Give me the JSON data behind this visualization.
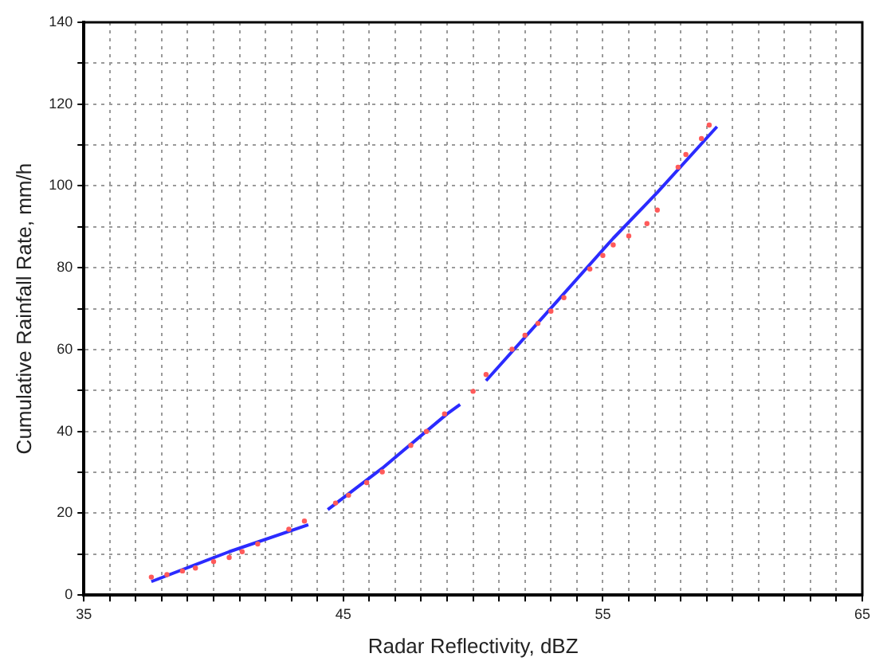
{
  "chart_data": {
    "type": "scatter",
    "xlabel": "Radar Reflectivity, dBZ",
    "ylabel": "Cumulative Rainfall Rate, mm/h",
    "xlim": [
      35,
      65
    ],
    "ylim": [
      0,
      140
    ],
    "xticks": [
      35,
      {
        "value": 36,
        "label": null
      },
      {
        "value": 37,
        "label": null
      },
      {
        "value": 38,
        "label": null
      },
      {
        "value": 39,
        "label": null
      },
      {
        "value": 40,
        "label": null
      },
      {
        "value": 41,
        "label": null
      },
      {
        "value": 42,
        "label": null
      },
      {
        "value": 43,
        "label": null
      },
      {
        "value": 44,
        "label": null
      },
      45,
      {
        "value": 46,
        "label": null
      },
      {
        "value": 47,
        "label": null
      },
      {
        "value": 48,
        "label": null
      },
      {
        "value": 49,
        "label": null
      },
      {
        "value": 50,
        "label": null
      },
      {
        "value": 51,
        "label": null
      },
      {
        "value": 52,
        "label": null
      },
      {
        "value": 53,
        "label": null
      },
      {
        "value": 54,
        "label": null
      },
      55,
      {
        "value": 56,
        "label": null
      },
      {
        "value": 57,
        "label": null
      },
      {
        "value": 58,
        "label": null
      },
      {
        "value": 59,
        "label": null
      },
      {
        "value": 60,
        "label": null
      },
      {
        "value": 61,
        "label": null
      },
      {
        "value": 62,
        "label": null
      },
      {
        "value": 63,
        "label": null
      },
      {
        "value": 64,
        "label": null
      },
      65
    ],
    "yticks": [
      0,
      {
        "value": 10,
        "label": null
      },
      20,
      {
        "value": 30,
        "label": null
      },
      40,
      {
        "value": 50,
        "label": null
      },
      60,
      {
        "value": 70,
        "label": null
      },
      80,
      {
        "value": 90,
        "label": null
      },
      100,
      {
        "value": 110,
        "label": null
      },
      120,
      {
        "value": 130,
        "label": null
      },
      140
    ],
    "grid": true,
    "legend": false,
    "series": [
      {
        "type": "scatter",
        "marker": "circle",
        "color": "#ff5a5a",
        "x": [
          37.6,
          38.2,
          38.8,
          39.3,
          40.0,
          40.6,
          41.1,
          41.7,
          42.9,
          43.5,
          44.7,
          45.2,
          45.9,
          46.5,
          47.6,
          48.2,
          48.9,
          50.0,
          50.5,
          51.5,
          52.0,
          52.5,
          53.0,
          53.5,
          54.5,
          55.0,
          55.4,
          56.0,
          56.7,
          57.1,
          57.9,
          58.2,
          58.8,
          59.1
        ],
        "values": [
          4.4,
          5.0,
          5.9,
          6.6,
          8.2,
          9.2,
          10.6,
          12.5,
          16.1,
          18.1,
          22.5,
          24.4,
          27.5,
          30.1,
          36.6,
          40.0,
          44.3,
          49.8,
          53.9,
          60.1,
          63.5,
          66.4,
          69.4,
          72.7,
          79.7,
          83.0,
          85.6,
          87.8,
          90.8,
          94.1,
          104.6,
          107.7,
          111.6,
          114.9
        ]
      },
      {
        "type": "line",
        "marker": "none",
        "color": "#2b2bff",
        "x": [
          37.6,
          40.6,
          43.65
        ],
        "values": [
          3.3,
          10.6,
          17.2
        ]
      },
      {
        "type": "line",
        "marker": "none",
        "color": "#2b2bff",
        "x": [
          44.4,
          46.5,
          49.0,
          49.5
        ],
        "values": [
          20.9,
          31.0,
          44.3,
          46.6
        ]
      },
      {
        "type": "line",
        "marker": "none",
        "color": "#2b2bff",
        "x": [
          50.5,
          52.9,
          55.4,
          57.1,
          59.4
        ],
        "values": [
          52.4,
          69.4,
          87.2,
          98.4,
          114.5
        ]
      }
    ]
  }
}
